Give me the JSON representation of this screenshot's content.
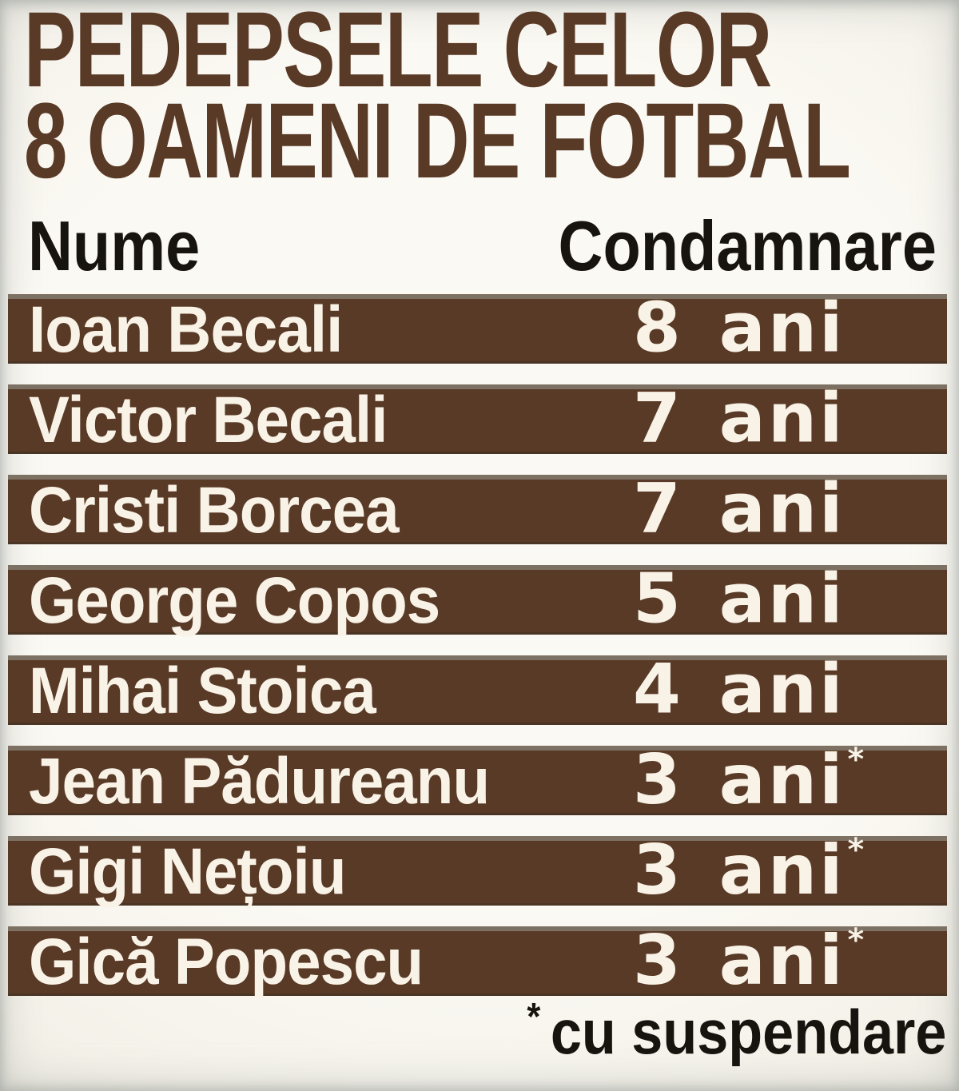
{
  "title": {
    "line1": "PEDEPSELE CELOR",
    "line2": "8 OAMENI DE FOTBAL"
  },
  "table": {
    "columns": {
      "name": "Nume",
      "sentence": "Condamnare"
    },
    "rows": [
      {
        "name": "Ioan Becali",
        "sentence": "8 ani",
        "marker": ""
      },
      {
        "name": "Victor Becali",
        "sentence": "7 ani",
        "marker": ""
      },
      {
        "name": "Cristi Borcea",
        "sentence": "7 ani",
        "marker": ""
      },
      {
        "name": "George Copos",
        "sentence": "5 ani",
        "marker": ""
      },
      {
        "name": "Mihai Stoica",
        "sentence": "4 ani",
        "marker": ""
      },
      {
        "name": "Jean Pădureanu",
        "sentence": "3 ani",
        "marker": "*"
      },
      {
        "name": "Gigi Nețoiu",
        "sentence": "3 ani",
        "marker": "*"
      },
      {
        "name": "Gică Popescu",
        "sentence": "3 ani",
        "marker": "*"
      }
    ],
    "footnote": {
      "marker": "*",
      "text": "cu suspendare"
    }
  },
  "chart_data": {
    "type": "table",
    "title": "PEDEPSELE CELOR 8 OAMENI DE FOTBAL",
    "columns": [
      "Nume",
      "Condamnare"
    ],
    "rows": [
      [
        "Ioan Becali",
        "8 ani"
      ],
      [
        "Victor Becali",
        "7 ani"
      ],
      [
        "Cristi Borcea",
        "7 ani"
      ],
      [
        "George Copos",
        "5 ani"
      ],
      [
        "Mihai Stoica",
        "4 ani"
      ],
      [
        "Jean Pădureanu",
        "3 ani*"
      ],
      [
        "Gigi Nețoiu",
        "3 ani*"
      ],
      [
        "Gică Popescu",
        "3 ani*"
      ]
    ],
    "sentence_years": [
      8,
      7,
      7,
      5,
      4,
      3,
      3,
      3
    ],
    "footnote": "* cu suspendare"
  },
  "colors": {
    "brown": "#593a26",
    "bar-top-edge": "#7d7163",
    "bar-bottom-edge": "#4a3424",
    "cream": "#f8f2e7",
    "ink": "#17130f",
    "bg-edge": "#c7cdc8"
  }
}
